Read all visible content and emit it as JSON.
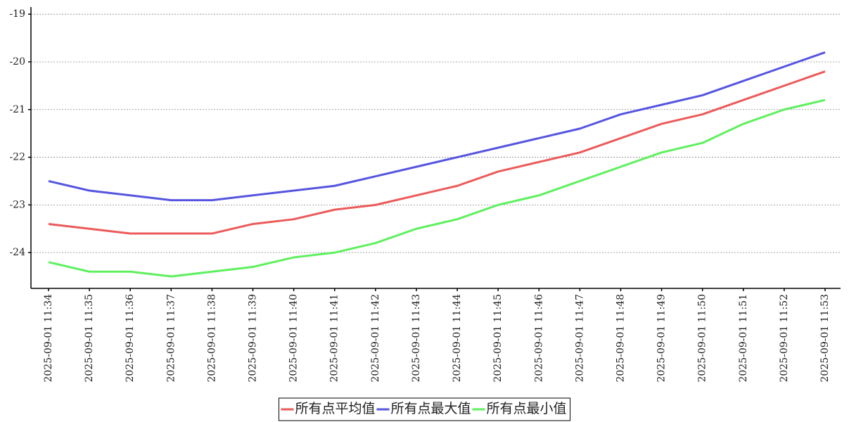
{
  "chart_data": {
    "type": "line",
    "categories": [
      "2025-09-01 11:34",
      "2025-09-01 11:35",
      "2025-09-01 11:36",
      "2025-09-01 11:37",
      "2025-09-01 11:38",
      "2025-09-01 11:39",
      "2025-09-01 11:40",
      "2025-09-01 11:41",
      "2025-09-01 11:42",
      "2025-09-01 11:43",
      "2025-09-01 11:44",
      "2025-09-01 11:45",
      "2025-09-01 11:46",
      "2025-09-01 11:47",
      "2025-09-01 11:48",
      "2025-09-01 11:49",
      "2025-09-01 11:50",
      "2025-09-01 11:51",
      "2025-09-01 11:52",
      "2025-09-01 11:53"
    ],
    "series": [
      {
        "name": "所有点平均值",
        "color": "#ec5a5a",
        "values": [
          -23.4,
          -23.5,
          -23.6,
          -23.6,
          -23.6,
          -23.4,
          -23.3,
          -23.1,
          -23.0,
          -22.8,
          -22.6,
          -22.3,
          -22.1,
          -21.9,
          -21.6,
          -21.3,
          -21.1,
          -20.8,
          -20.5,
          -20.2
        ]
      },
      {
        "name": "所有点最大值",
        "color": "#5555e0",
        "values": [
          -22.5,
          -22.7,
          -22.8,
          -22.9,
          -22.9,
          -22.8,
          -22.7,
          -22.6,
          -22.4,
          -22.2,
          -22.0,
          -21.8,
          -21.6,
          -21.4,
          -21.1,
          -20.9,
          -20.7,
          -20.4,
          -20.1,
          -19.8
        ]
      },
      {
        "name": "所有点最小值",
        "color": "#5ef05e",
        "values": [
          -24.2,
          -24.4,
          -24.4,
          -24.5,
          -24.4,
          -24.3,
          -24.1,
          -24.0,
          -23.8,
          -23.5,
          -23.3,
          -23.0,
          -22.8,
          -22.5,
          -22.2,
          -21.9,
          -21.7,
          -21.3,
          -21.0,
          -20.8
        ]
      }
    ],
    "ylim": [
      -24.75,
      -18.85
    ],
    "yticks": [
      -24,
      -23,
      -22,
      -21,
      -20,
      -19
    ],
    "grid": true,
    "legend": "bottom"
  }
}
